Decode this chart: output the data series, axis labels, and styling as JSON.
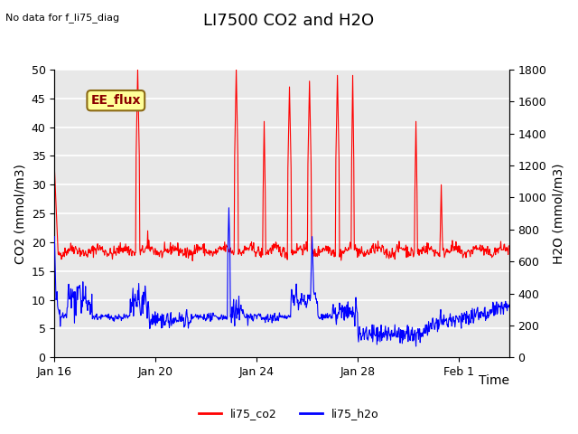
{
  "title": "LI7500 CO2 and H2O",
  "top_left_text": "No data for f_li75_diag",
  "xlabel": "Time",
  "ylabel_left": "CO2 (mmol/m3)",
  "ylabel_right": "H2O (mmol/m3)",
  "ylim_left": [
    0,
    50
  ],
  "ylim_right": [
    0,
    1800
  ],
  "yticks_left": [
    0,
    5,
    10,
    15,
    20,
    25,
    30,
    35,
    40,
    45,
    50
  ],
  "yticks_right": [
    0,
    200,
    400,
    600,
    800,
    1000,
    1200,
    1400,
    1600,
    1800
  ],
  "xtick_labels": [
    "Jan 16",
    "Jan 20",
    "Jan 24",
    "Jan 28",
    "Feb 1"
  ],
  "legend_entries": [
    "li75_co2",
    "li75_h2o"
  ],
  "legend_colors": [
    "red",
    "blue"
  ],
  "annotation_text": "EE_flux",
  "annotation_color": "#8B0000",
  "annotation_bg": "#FFFF99",
  "annotation_border": "#8B6914",
  "bg_color": "#E8E8E8",
  "grid_color": "white",
  "co2_color": "red",
  "h2o_color": "blue",
  "title_fontsize": 13,
  "label_fontsize": 10,
  "tick_fontsize": 9,
  "seed": 42
}
